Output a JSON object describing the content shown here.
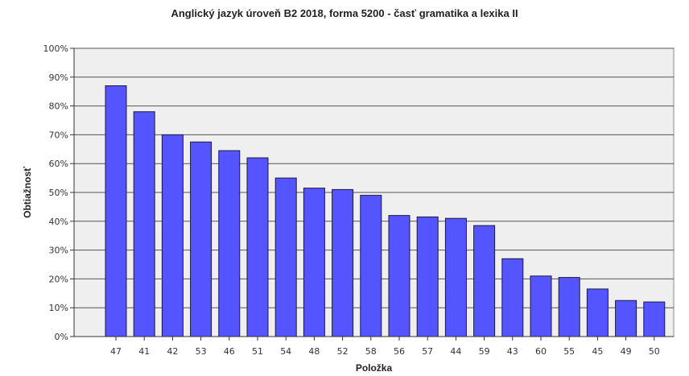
{
  "chart_data": {
    "type": "bar",
    "title": "Anglický jazyk úroveň B2 2018, forma 5200 - časť gramatika a lexika II",
    "xlabel": "Položka",
    "ylabel": "Obtiažnosť",
    "categories": [
      "47",
      "41",
      "42",
      "53",
      "46",
      "51",
      "54",
      "48",
      "52",
      "58",
      "56",
      "57",
      "44",
      "59",
      "43",
      "60",
      "55",
      "45",
      "49",
      "50"
    ],
    "values": [
      87,
      78,
      70,
      67.5,
      64.5,
      62,
      55,
      51.5,
      51,
      49,
      42,
      41.5,
      41,
      38.5,
      27,
      21,
      20.5,
      16.5,
      12.5,
      12
    ],
    "ylim": [
      0,
      100
    ],
    "yticks": [
      "0%",
      "10%",
      "20%",
      "30%",
      "40%",
      "50%",
      "60%",
      "70%",
      "80%",
      "90%",
      "100%"
    ],
    "grid": true,
    "colors": {
      "bar_fill": "#5555ff",
      "bar_stroke": "#1a1a40",
      "plot_background": "#efefef",
      "gridline": "#555555"
    }
  }
}
